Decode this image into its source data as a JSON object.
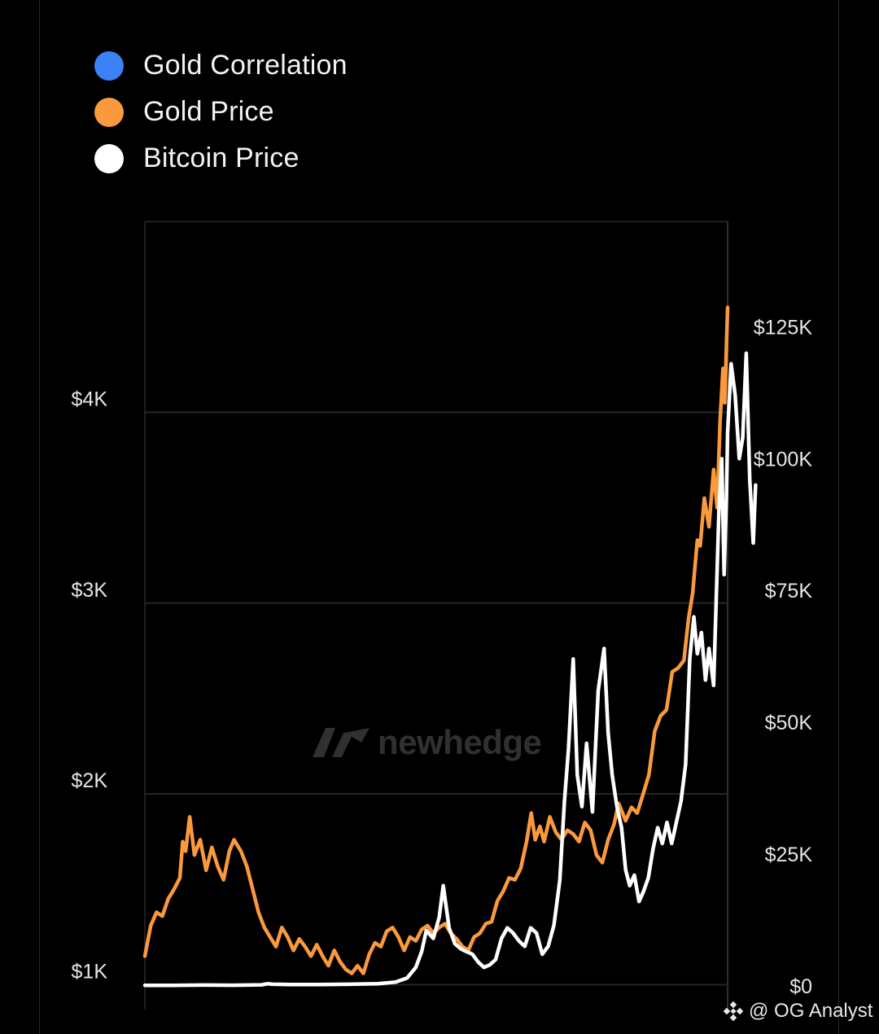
{
  "legend": [
    {
      "label": "Gold Correlation",
      "color": "#3b82f6"
    },
    {
      "label": "Gold Price",
      "color": "#fb9a3c"
    },
    {
      "label": "Bitcoin Price",
      "color": "#ffffff"
    }
  ],
  "watermark": {
    "text": "newhedge",
    "icon": "newhedge-logo-icon"
  },
  "credit": {
    "icon": "binance-diamond-icon",
    "text": "@ OG Analyst"
  },
  "chart_data": {
    "type": "line",
    "title": "",
    "left_axis": {
      "ticks": [
        {
          "v": 1000,
          "label": "$1K"
        },
        {
          "v": 2000,
          "label": "$2K"
        },
        {
          "v": 3000,
          "label": "$3K"
        },
        {
          "v": 4000,
          "label": "$4K"
        }
      ],
      "range": [
        870,
        5000
      ]
    },
    "right_axis": {
      "ticks": [
        {
          "v": 0,
          "label": "$0"
        },
        {
          "v": 25000,
          "label": "$25K"
        },
        {
          "v": 50000,
          "label": "$50K"
        },
        {
          "v": 75000,
          "label": "$75K"
        },
        {
          "v": 100000,
          "label": "$100K"
        },
        {
          "v": 125000,
          "label": "$125K"
        }
      ],
      "range": [
        -4500,
        145000
      ]
    },
    "x_range": [
      0,
      100
    ],
    "grid": true,
    "series": [
      {
        "name": "Gold Price",
        "axis": "left",
        "color": "#fb9a3c",
        "points": [
          [
            0,
            1150
          ],
          [
            1,
            1310
          ],
          [
            2,
            1380
          ],
          [
            3,
            1360
          ],
          [
            4,
            1450
          ],
          [
            5,
            1500
          ],
          [
            6,
            1560
          ],
          [
            6.5,
            1750
          ],
          [
            7,
            1700
          ],
          [
            7.7,
            1880
          ],
          [
            8.5,
            1680
          ],
          [
            9.5,
            1760
          ],
          [
            10.5,
            1600
          ],
          [
            11.5,
            1720
          ],
          [
            12.5,
            1620
          ],
          [
            13.5,
            1550
          ],
          [
            14.5,
            1700
          ],
          [
            15.3,
            1760
          ],
          [
            16.5,
            1700
          ],
          [
            17.5,
            1620
          ],
          [
            18.5,
            1500
          ],
          [
            19.5,
            1380
          ],
          [
            20.5,
            1300
          ],
          [
            21.5,
            1250
          ],
          [
            22.5,
            1200
          ],
          [
            23.5,
            1300
          ],
          [
            24.5,
            1250
          ],
          [
            25.5,
            1180
          ],
          [
            26.5,
            1240
          ],
          [
            27.5,
            1200
          ],
          [
            28.5,
            1150
          ],
          [
            29.5,
            1210
          ],
          [
            30.5,
            1150
          ],
          [
            31.5,
            1100
          ],
          [
            32.5,
            1180
          ],
          [
            33.5,
            1120
          ],
          [
            34.5,
            1080
          ],
          [
            35.5,
            1060
          ],
          [
            36.5,
            1100
          ],
          [
            37.5,
            1060
          ],
          [
            38.5,
            1160
          ],
          [
            39.5,
            1220
          ],
          [
            40.5,
            1200
          ],
          [
            41.5,
            1280
          ],
          [
            42.5,
            1300
          ],
          [
            43.5,
            1250
          ],
          [
            44.5,
            1180
          ],
          [
            45.5,
            1250
          ],
          [
            46.5,
            1230
          ],
          [
            47.5,
            1290
          ],
          [
            48.5,
            1310
          ],
          [
            49.5,
            1270
          ],
          [
            50.5,
            1300
          ],
          [
            51.5,
            1320
          ],
          [
            52.5,
            1270
          ],
          [
            53.5,
            1240
          ],
          [
            54.5,
            1200
          ],
          [
            55.5,
            1180
          ],
          [
            56.5,
            1250
          ],
          [
            57.5,
            1270
          ],
          [
            58.5,
            1320
          ],
          [
            59.5,
            1330
          ],
          [
            60.5,
            1440
          ],
          [
            61.5,
            1490
          ],
          [
            62.5,
            1560
          ],
          [
            63.5,
            1550
          ],
          [
            64.5,
            1610
          ],
          [
            65.5,
            1750
          ],
          [
            66.3,
            1900
          ],
          [
            67,
            1760
          ],
          [
            67.8,
            1830
          ],
          [
            68.5,
            1750
          ],
          [
            69.5,
            1880
          ],
          [
            70.5,
            1800
          ],
          [
            71.5,
            1760
          ],
          [
            72.5,
            1810
          ],
          [
            73.5,
            1790
          ],
          [
            74.5,
            1750
          ],
          [
            75.5,
            1850
          ],
          [
            76.5,
            1810
          ],
          [
            77.5,
            1680
          ],
          [
            78.5,
            1640
          ],
          [
            79.5,
            1760
          ],
          [
            80.5,
            1840
          ],
          [
            81.3,
            1950
          ],
          [
            82.5,
            1860
          ],
          [
            83.5,
            1930
          ],
          [
            84.5,
            1900
          ],
          [
            85.5,
            2000
          ],
          [
            86.5,
            2100
          ],
          [
            87.5,
            2330
          ],
          [
            88.5,
            2410
          ],
          [
            89.5,
            2440
          ],
          [
            90.5,
            2640
          ],
          [
            91.5,
            2660
          ],
          [
            92.5,
            2700
          ],
          [
            93.3,
            2920
          ],
          [
            94,
            3050
          ],
          [
            94.8,
            3330
          ],
          [
            95.3,
            3300
          ],
          [
            96,
            3550
          ],
          [
            96.8,
            3400
          ],
          [
            97.6,
            3700
          ],
          [
            98.2,
            3500
          ],
          [
            98.7,
            3950
          ],
          [
            99.2,
            4230
          ],
          [
            99.5,
            4050
          ],
          [
            100,
            4550
          ]
        ]
      },
      {
        "name": "Bitcoin Price",
        "axis": "right",
        "color": "#ffffff",
        "points": [
          [
            0,
            100
          ],
          [
            5,
            100
          ],
          [
            10,
            150
          ],
          [
            15,
            120
          ],
          [
            20,
            200
          ],
          [
            21,
            400
          ],
          [
            22,
            300
          ],
          [
            25,
            250
          ],
          [
            30,
            250
          ],
          [
            35,
            300
          ],
          [
            40,
            400
          ],
          [
            43,
            700
          ],
          [
            45,
            1500
          ],
          [
            46.5,
            3500
          ],
          [
            47.5,
            6500
          ],
          [
            48.3,
            10500
          ],
          [
            49.5,
            9000
          ],
          [
            50.5,
            13000
          ],
          [
            51.2,
            19000
          ],
          [
            52.2,
            11000
          ],
          [
            53.2,
            8000
          ],
          [
            54.2,
            7000
          ],
          [
            55.2,
            6500
          ],
          [
            56.2,
            6000
          ],
          [
            57.2,
            4500
          ],
          [
            58.2,
            3500
          ],
          [
            59.2,
            4000
          ],
          [
            60.2,
            5000
          ],
          [
            61.2,
            9000
          ],
          [
            62.2,
            11000
          ],
          [
            63.2,
            10000
          ],
          [
            64.2,
            8500
          ],
          [
            65.2,
            7500
          ],
          [
            66.2,
            11000
          ],
          [
            67.2,
            10000
          ],
          [
            68.2,
            6000
          ],
          [
            69.2,
            7500
          ],
          [
            70.2,
            11500
          ],
          [
            71.2,
            20000
          ],
          [
            72,
            35000
          ],
          [
            72.7,
            45000
          ],
          [
            73.5,
            62000
          ],
          [
            74.2,
            40000
          ],
          [
            75,
            34000
          ],
          [
            75.8,
            46000
          ],
          [
            76.8,
            33000
          ],
          [
            77.8,
            56000
          ],
          [
            78.8,
            64000
          ],
          [
            79.5,
            48000
          ],
          [
            80.2,
            40000
          ],
          [
            81,
            34000
          ],
          [
            81.8,
            30000
          ],
          [
            82.5,
            22000
          ],
          [
            83.2,
            19000
          ],
          [
            84,
            21000
          ],
          [
            84.8,
            16000
          ],
          [
            85.6,
            18000
          ],
          [
            86.4,
            20500
          ],
          [
            87.2,
            26000
          ],
          [
            88,
            30000
          ],
          [
            88.8,
            27000
          ],
          [
            89.6,
            31000
          ],
          [
            90.4,
            27000
          ],
          [
            91.2,
            31000
          ],
          [
            92,
            35000
          ],
          [
            92.8,
            42000
          ],
          [
            93.5,
            62000
          ],
          [
            94.2,
            70000
          ],
          [
            94.8,
            63000
          ],
          [
            95.5,
            67000
          ],
          [
            96.2,
            58000
          ],
          [
            96.8,
            64000
          ],
          [
            97.6,
            57000
          ],
          [
            98.5,
            90000
          ],
          [
            99,
            100000
          ],
          [
            99.4,
            78000
          ],
          [
            99.8,
            93000
          ],
          [
            100,
            105000
          ],
          [
            100.6,
            118000
          ],
          [
            101.3,
            112000
          ],
          [
            102,
            100000
          ],
          [
            102.6,
            104000
          ],
          [
            103.2,
            120000
          ],
          [
            103.8,
            96000
          ],
          [
            104.4,
            84000
          ],
          [
            104.8,
            95000
          ]
        ]
      }
    ]
  }
}
